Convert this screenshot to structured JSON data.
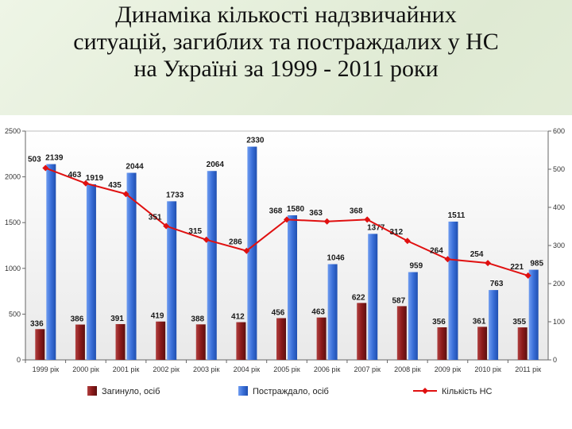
{
  "slide": {
    "title_lines": [
      "Динаміка кількості надзвичайних",
      "ситуацій, загиблих та постраждалих у НС",
      "на Україні за 1999 - 2011 роки"
    ]
  },
  "colors": {
    "killed": "#8b1a1a",
    "injured": "#3a6fd8",
    "incidents": "#e01010"
  },
  "chart_data": {
    "type": "bar",
    "categories": [
      "1999 рік",
      "2000 рік",
      "2001 рік",
      "2002 рік",
      "2003 рік",
      "2004 рік",
      "2005 рік",
      "2006 рік",
      "2007 рік",
      "2008 рік",
      "2009 рік",
      "2010 рік",
      "2011 рік"
    ],
    "series": [
      {
        "name": "Загинуло, осіб",
        "type": "bar",
        "axis": "left",
        "values": [
          336,
          386,
          391,
          419,
          388,
          412,
          456,
          463,
          622,
          587,
          356,
          361,
          355
        ]
      },
      {
        "name": "Постраждало, осіб",
        "type": "bar",
        "axis": "left",
        "values": [
          2139,
          1919,
          2044,
          1733,
          2064,
          2330,
          1580,
          1046,
          1377,
          959,
          1511,
          763,
          985
        ]
      },
      {
        "name": "Кількість НС",
        "type": "line",
        "axis": "right",
        "values": [
          503,
          463,
          435,
          351,
          315,
          286,
          368,
          363,
          368,
          312,
          264,
          254,
          221
        ]
      }
    ],
    "y_left": {
      "ylim": [
        0,
        2500
      ],
      "ticks": [
        "0",
        "500",
        "1000",
        "1500",
        "2000",
        "2500"
      ]
    },
    "y_right": {
      "ylim": [
        0,
        600
      ],
      "ticks": [
        "0",
        "100",
        "200",
        "300",
        "400",
        "500",
        "600"
      ]
    },
    "legend": {
      "position": "bottom",
      "labels": [
        "Загинуло, осіб",
        "Постраждало, осіб",
        "Кількість НС"
      ]
    },
    "grid": false
  }
}
